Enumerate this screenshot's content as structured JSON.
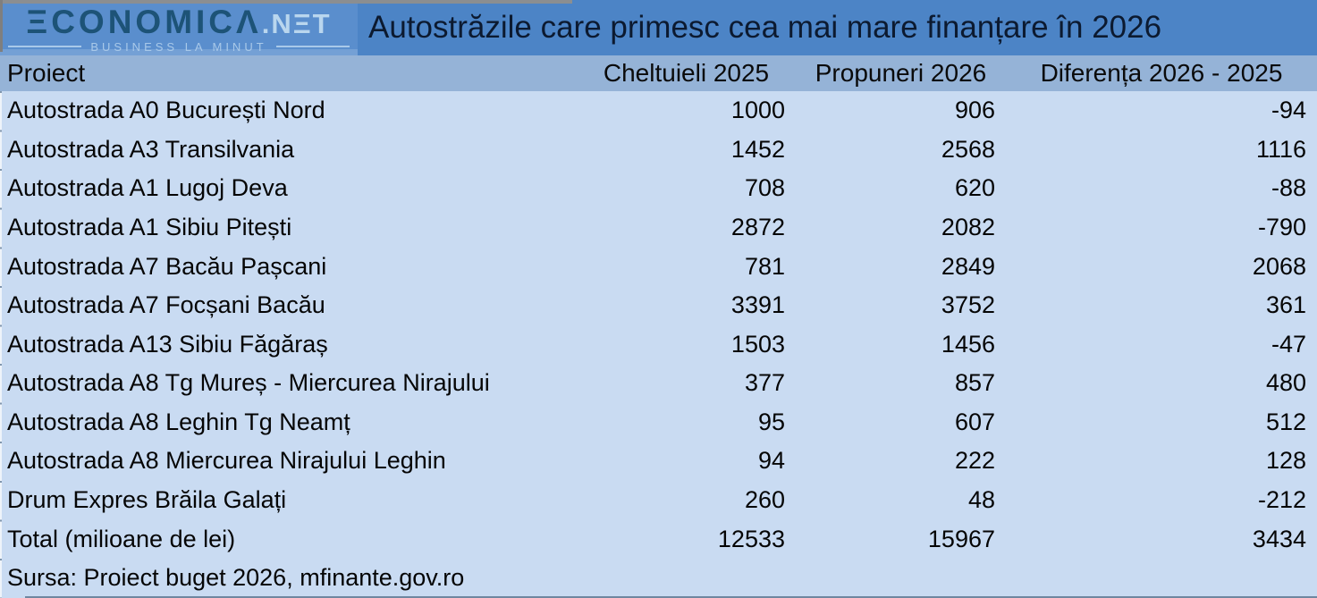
{
  "brand": {
    "name": "ECONOMICA.NET",
    "wordmark": "ΞCONOMICΛ",
    "wordmark_suffix": ".NΞT",
    "tagline": "BUSINESS LA MINUT"
  },
  "header": {
    "title": "Autostrăzile care primesc cea mai mare finanțare în 2026"
  },
  "colors": {
    "topbar_bg": "#4c84c6",
    "logo_bg": "#5a8ecd",
    "logo_text_dark": "#1d5377",
    "logo_text_light": "#a9c9e9",
    "header_row_bg": "#95b3d7",
    "row_bg": "#c9dbf2",
    "title_text": "#0c1a30",
    "cell_text": "#050505"
  },
  "chart_data": {
    "type": "table",
    "title": "Autostrăzile care primesc cea mai mare finanțare în 2026",
    "unit": "milioane de lei",
    "columns": [
      "Proiect",
      "Cheltuieli 2025",
      "Propuneri 2026",
      "Diferența 2026 - 2025"
    ],
    "rows": [
      {
        "proiect": "Autostrada A0 București Nord",
        "cheltuieli_2025": 1000,
        "propuneri_2026": 906,
        "diferenta": -94
      },
      {
        "proiect": "Autostrada A3 Transilvania",
        "cheltuieli_2025": 1452,
        "propuneri_2026": 2568,
        "diferenta": 1116
      },
      {
        "proiect": "Autostrada A1 Lugoj Deva",
        "cheltuieli_2025": 708,
        "propuneri_2026": 620,
        "diferenta": -88
      },
      {
        "proiect": "Autostrada A1 Sibiu Pitești",
        "cheltuieli_2025": 2872,
        "propuneri_2026": 2082,
        "diferenta": -790
      },
      {
        "proiect": "Autostrada A7 Bacău Pașcani",
        "cheltuieli_2025": 781,
        "propuneri_2026": 2849,
        "diferenta": 2068
      },
      {
        "proiect": "Autostrada A7 Focșani Bacău",
        "cheltuieli_2025": 3391,
        "propuneri_2026": 3752,
        "diferenta": 361
      },
      {
        "proiect": "Autostrada A13 Sibiu Făgăraș",
        "cheltuieli_2025": 1503,
        "propuneri_2026": 1456,
        "diferenta": -47
      },
      {
        "proiect": "Autostrada A8 Tg Mureș - Miercurea Nirajului",
        "cheltuieli_2025": 377,
        "propuneri_2026": 857,
        "diferenta": 480
      },
      {
        "proiect": "Autostrada A8 Leghin Tg Neamț",
        "cheltuieli_2025": 95,
        "propuneri_2026": 607,
        "diferenta": 512
      },
      {
        "proiect": "Autostrada A8 Miercurea Nirajului Leghin",
        "cheltuieli_2025": 94,
        "propuneri_2026": 222,
        "diferenta": 128
      },
      {
        "proiect": "Drum Expres Brăila Galați",
        "cheltuieli_2025": 260,
        "propuneri_2026": 48,
        "diferenta": -212
      }
    ],
    "total_row": {
      "proiect": "Total (milioane de lei)",
      "cheltuieli_2025": 12533,
      "propuneri_2026": 15967,
      "diferenta": 3434
    },
    "source": "Sursa: Proiect buget 2026, mfinante.gov.ro"
  }
}
